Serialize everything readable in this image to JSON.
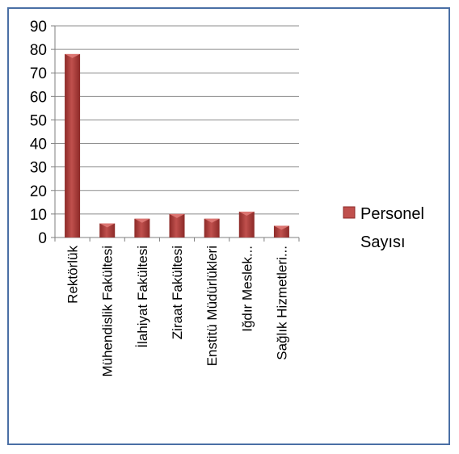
{
  "chart_data": {
    "type": "bar",
    "title": "",
    "xlabel": "",
    "ylabel": "",
    "categories": [
      "Rektörlük",
      "Mühendislik Fakültesi",
      "İlahiyat Fakültesi",
      "Ziraat Fakültesi",
      "Enstitü Müdürlükleri",
      "Iğdır Meslek...",
      "Sağlık Hizmetleri..."
    ],
    "series": [
      {
        "name": "Personel Sayısı",
        "values": [
          78,
          6,
          8,
          10,
          8,
          11,
          5
        ]
      }
    ],
    "ylim": [
      0,
      90
    ],
    "yticks": [
      0,
      10,
      20,
      30,
      40,
      50,
      60,
      70,
      80,
      90
    ],
    "grid": true,
    "legend": "right",
    "legend_lines": [
      "Personel",
      "Sayısı"
    ],
    "colors": {
      "bar": "#c0504d",
      "bar_dark": "#8c2a28",
      "bar_light": "#e07a77",
      "border": "#4a6fa5",
      "grid": "#8c8c8c"
    }
  }
}
